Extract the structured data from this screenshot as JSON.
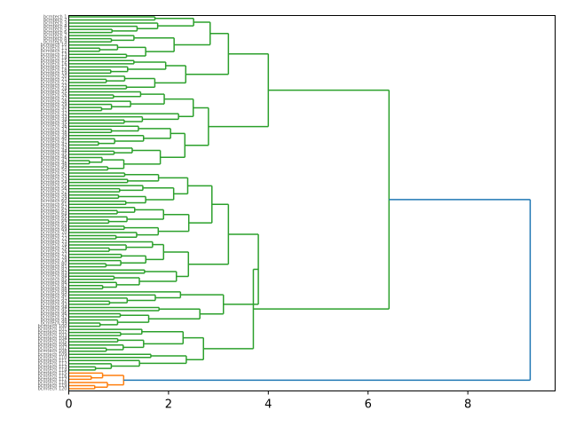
{
  "chart_data": {
    "type": "dendrogram",
    "orientation": "horizontal",
    "title": "",
    "xlabel": "",
    "ylabel": "",
    "xlim": [
      0,
      9.75
    ],
    "x_ticks": [
      0,
      2,
      4,
      6,
      8
    ],
    "x_tick_labels": [
      "0",
      "2",
      "4",
      "6",
      "8"
    ],
    "leaf_count": 120,
    "leaf_label_prefix": "bcmtech",
    "grid": false,
    "colors": {
      "green_cluster": "#2ca02c",
      "orange_cluster": "#ff7f0e",
      "root_link": "#1f77b4",
      "axis": "#000000"
    },
    "top_merges": [
      {
        "name": "root",
        "distance": 9.25,
        "color": "#1f77b4"
      },
      {
        "name": "green-main",
        "distance": 6.42,
        "color": "#2ca02c"
      },
      {
        "name": "orange-cluster",
        "distance": 1.1,
        "color": "#ff7f0e"
      },
      {
        "name": "green-upper",
        "distance": 4.0,
        "color": "#2ca02c"
      },
      {
        "name": "green-lower",
        "distance": 6.3,
        "color": "#2ca02c"
      },
      {
        "name": "green-lower-a",
        "distance": 3.8,
        "color": "#2ca02c"
      },
      {
        "name": "green-lower-b",
        "distance": 3.7,
        "color": "#2ca02c"
      }
    ]
  }
}
